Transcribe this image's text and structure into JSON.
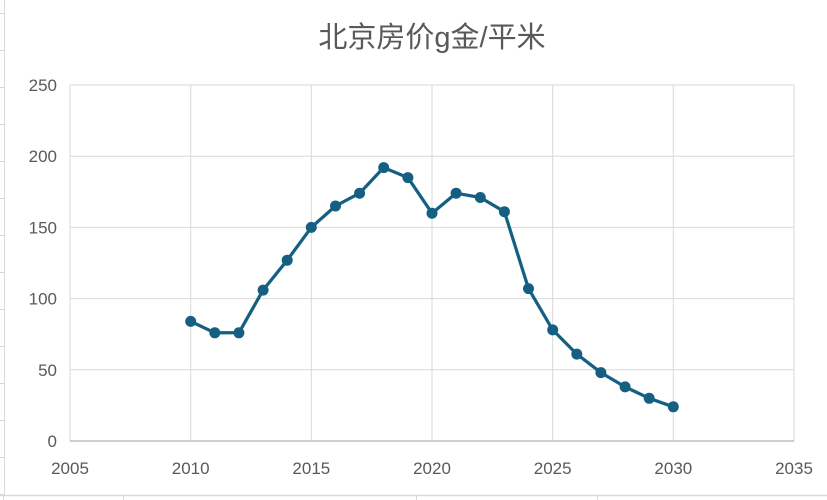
{
  "page": {
    "background": "#ffffff"
  },
  "chart_data": {
    "type": "line",
    "title": "北京房价g金/平米",
    "x": [
      2010,
      2011,
      2012,
      2013,
      2014,
      2015,
      2016,
      2017,
      2018,
      2019,
      2020,
      2021,
      2022,
      2023,
      2024,
      2025,
      2026,
      2027,
      2028,
      2029,
      2030
    ],
    "values": [
      84,
      76,
      76,
      106,
      127,
      150,
      165,
      174,
      192,
      185,
      160,
      174,
      171,
      161,
      107,
      78,
      61,
      48,
      38,
      30,
      24
    ],
    "xlabel": "",
    "ylabel": "",
    "xlim": [
      2005,
      2035
    ],
    "ylim": [
      0,
      250
    ],
    "x_ticks": [
      2005,
      2010,
      2015,
      2020,
      2025,
      2030,
      2035
    ],
    "y_ticks": [
      0,
      50,
      100,
      150,
      200,
      250
    ],
    "grid": "on",
    "legend": "none",
    "marker": "circle",
    "colors": {
      "line": "#156082",
      "marker": "#156082",
      "gridline": "#D9D9D9",
      "plot_border": "#D9D9D9",
      "axis_line": "#BFBFBF",
      "tick_label": "#595959",
      "title": "#595959",
      "spreadsheet_line": "#D8D8D8"
    }
  }
}
